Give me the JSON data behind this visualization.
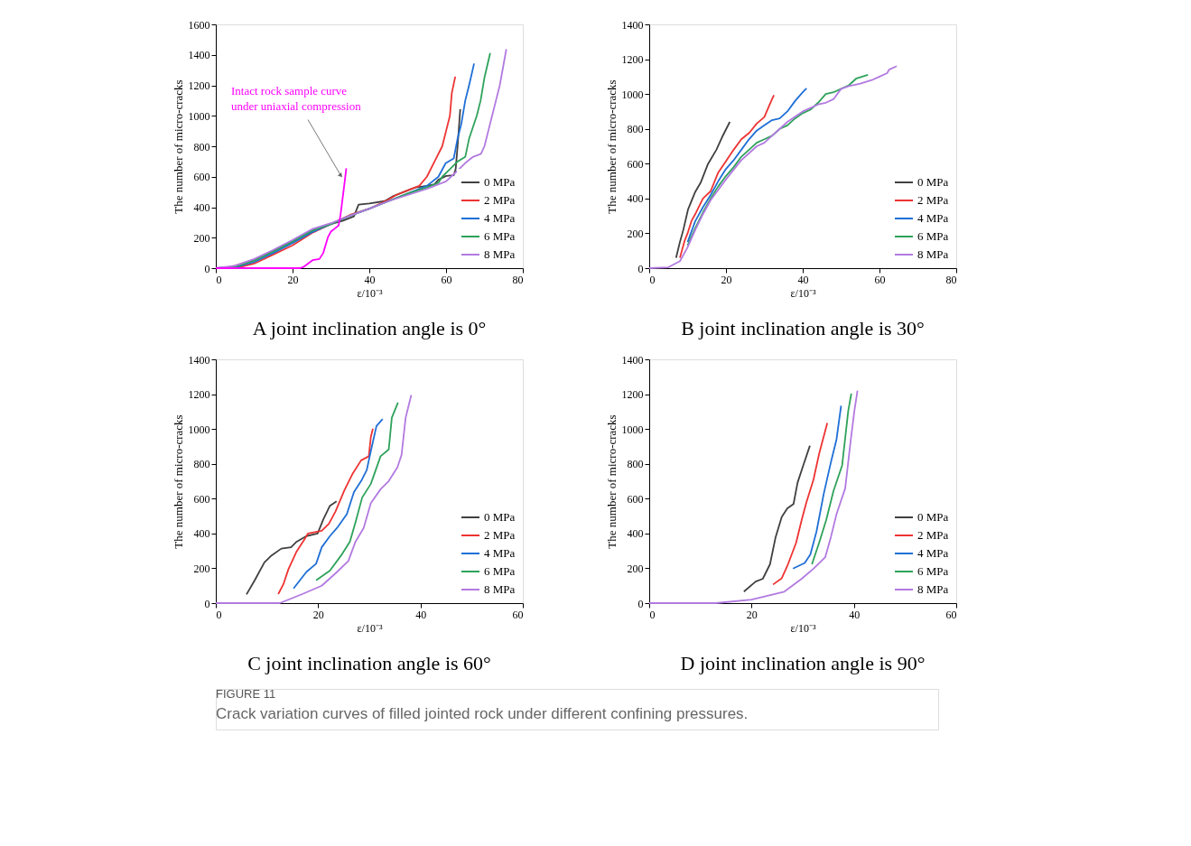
{
  "chart_data": [
    {
      "type": "line",
      "title": "A   joint inclination angle is 0°",
      "xlabel": "ε/10⁻³",
      "ylabel": "The number of micro-cracks",
      "xlim": [
        0,
        80
      ],
      "xticks": [
        0,
        20,
        40,
        60,
        80
      ],
      "ylim": [
        0,
        1600
      ],
      "yticks": [
        0,
        200,
        400,
        600,
        800,
        1000,
        1200,
        1400,
        1600
      ],
      "legend": "bottom right",
      "annotations": [
        "Intact rock sample curve under uniaxial compression"
      ],
      "series": [
        {
          "name": "0 MPa",
          "color": "#404040",
          "x": [
            0,
            2,
            5,
            10,
            15,
            20,
            25,
            30,
            33,
            36,
            37.2,
            40,
            44,
            46,
            50,
            52,
            55,
            57,
            58,
            60,
            62,
            62.5,
            63,
            63.7
          ],
          "values": [
            0,
            0,
            15,
            55,
            115,
            175,
            245,
            290,
            310,
            340,
            417,
            425,
            440,
            470,
            510,
            530,
            540,
            550,
            580,
            605,
            610,
            650,
            800,
            1044
          ]
        },
        {
          "name": "2 MPa",
          "color": "#ee3333",
          "x": [
            0,
            5,
            10,
            15,
            20,
            25,
            30,
            35,
            40,
            45,
            47,
            50,
            53,
            55,
            57,
            59,
            60,
            61,
            61.5,
            62.4
          ],
          "values": [
            0,
            0,
            30,
            90,
            150,
            230,
            290,
            350,
            390,
            450,
            480,
            510,
            540,
            600,
            700,
            800,
            900,
            1000,
            1150,
            1257
          ]
        },
        {
          "name": "4 MPa",
          "color": "#1f6fd6",
          "x": [
            0,
            5,
            10,
            15,
            20,
            25,
            30,
            35,
            40,
            45,
            50,
            55,
            58,
            59.9,
            62,
            63,
            64,
            65,
            66,
            67.3
          ],
          "values": [
            0,
            5,
            40,
            100,
            165,
            235,
            290,
            345,
            390,
            440,
            490,
            540,
            600,
            689,
            720,
            850,
            950,
            1100,
            1200,
            1343
          ]
        },
        {
          "name": "6 MPa",
          "color": "#2ea25a",
          "x": [
            0,
            5,
            10,
            15,
            20,
            25,
            30,
            35,
            40,
            45,
            50,
            55,
            58,
            59,
            61,
            63,
            65,
            66,
            68,
            69,
            70,
            71.5
          ],
          "values": [
            0,
            10,
            50,
            110,
            175,
            245,
            290,
            345,
            390,
            440,
            490,
            530,
            560,
            600,
            650,
            700,
            730,
            850,
            1000,
            1100,
            1250,
            1412
          ]
        },
        {
          "name": "8 MPa",
          "color": "#b27ae0",
          "x": [
            0,
            5,
            10,
            15,
            20,
            25,
            30,
            35,
            40,
            45,
            50,
            55,
            60,
            63,
            65,
            67,
            69.1,
            70,
            71,
            72,
            73,
            74,
            75.7
          ],
          "values": [
            0,
            15,
            60,
            120,
            185,
            255,
            295,
            345,
            390,
            440,
            480,
            520,
            570,
            640,
            690,
            730,
            750,
            800,
            900,
            1000,
            1100,
            1200,
            1437
          ]
        },
        {
          "color": "#ff00ff",
          "x": [
            0,
            22,
            23,
            25.2,
            27,
            28,
            29.2,
            30,
            31,
            32,
            32.5,
            33,
            33.5,
            34
          ],
          "values": [
            0,
            0,
            10,
            52,
            60,
            100,
            202,
            240,
            260,
            280,
            350,
            450,
            550,
            655
          ]
        }
      ]
    },
    {
      "type": "line",
      "title": "B   joint inclination angle is 30°",
      "xlabel": "ε/10⁻³",
      "ylabel": "The number of micro-cracks",
      "xlim": [
        0,
        80
      ],
      "xticks": [
        0,
        20,
        40,
        60,
        80
      ],
      "ylim": [
        0,
        1400
      ],
      "yticks": [
        0,
        200,
        400,
        600,
        800,
        1000,
        1200,
        1400
      ],
      "legend": "bottom right",
      "series": [
        {
          "name": "0 MPa",
          "color": "#404040",
          "x": [
            7,
            8,
            8.9,
            10.1,
            11.9,
            13.4,
            15.3,
            17.5,
            19,
            21
          ],
          "values": [
            60,
            150,
            221,
            336,
            434,
            491,
            598,
            680,
            753,
            840
          ]
        },
        {
          "name": "2 MPa",
          "color": "#ee3333",
          "x": [
            8,
            9.2,
            10,
            11,
            12.2,
            14,
            16,
            18,
            20,
            22,
            24,
            26.1,
            28,
            30,
            31,
            32,
            32.5
          ],
          "values": [
            60,
            156,
            200,
            270,
            319,
            400,
            442,
            550,
            614,
            680,
            740,
            778,
            830,
            868,
            920,
            970,
            994
          ]
        },
        {
          "name": "4 MPa",
          "color": "#1f6fd6",
          "x": [
            10,
            12,
            14,
            16,
            18,
            20,
            22,
            24,
            26,
            28,
            30,
            32,
            34,
            36,
            38,
            40,
            41
          ],
          "values": [
            150,
            270,
            350,
            420,
            500,
            570,
            620,
            680,
            740,
            790,
            820,
            850,
            860,
            900,
            960,
            1010,
            1032
          ]
        },
        {
          "name": "6 MPa",
          "color": "#2ea25a",
          "x": [
            10,
            12,
            14,
            16,
            18,
            20,
            22,
            24,
            26,
            28,
            30,
            32,
            34,
            36,
            38,
            40,
            42,
            44,
            46,
            48,
            50,
            52,
            54,
            57
          ],
          "values": [
            130,
            230,
            320,
            400,
            470,
            530,
            580,
            640,
            680,
            720,
            740,
            760,
            800,
            820,
            860,
            890,
            910,
            950,
            1000,
            1010,
            1030,
            1050,
            1090,
            1110
          ]
        },
        {
          "name": "8 MPa",
          "color": "#b27ae0",
          "x": [
            0,
            5,
            8,
            10,
            12,
            14,
            16,
            18,
            20,
            24,
            26,
            28,
            30,
            32,
            34,
            36,
            38,
            40,
            42,
            44,
            46,
            48,
            50,
            52,
            55,
            58,
            60,
            62,
            62.5,
            64.5
          ],
          "values": [
            0,
            5,
            40,
            120,
            220,
            310,
            390,
            450,
            510,
            620,
            660,
            700,
            720,
            760,
            800,
            840,
            870,
            900,
            920,
            940,
            950,
            970,
            1030,
            1045,
            1060,
            1080,
            1100,
            1120,
            1140,
            1160
          ]
        }
      ]
    },
    {
      "type": "line",
      "title": "C   joint inclination angle is 60°",
      "xlabel": "ε/10⁻³",
      "ylabel": "The number of micro-cracks",
      "xlim": [
        0,
        60
      ],
      "xticks": [
        0,
        20,
        40,
        60
      ],
      "ylim": [
        0,
        1400
      ],
      "yticks": [
        0,
        200,
        400,
        600,
        800,
        1000,
        1200,
        1400
      ],
      "legend": "bottom right",
      "series": [
        {
          "name": "0 MPa",
          "color": "#404040",
          "x": [
            6,
            7.6,
            9.5,
            10.9,
            12.8,
            14.7,
            15.8,
            17.7,
            19.9,
            21,
            22.3,
            23.6
          ],
          "values": [
            50,
            131,
            234,
            274,
            313,
            321,
            353,
            385,
            400,
            480,
            559,
            585
          ]
        },
        {
          "name": "2 MPa",
          "color": "#ee3333",
          "x": [
            12.2,
            13.2,
            14.2,
            15.8,
            17.4,
            18,
            20.7,
            22.1,
            23.4,
            25.1,
            26.7,
            28.4,
            29.9,
            30.3,
            30.7
          ],
          "values": [
            52,
            108,
            195,
            297,
            369,
            400,
            416,
            456,
            527,
            646,
            741,
            820,
            843,
            954,
            1002
          ]
        },
        {
          "name": "4 MPa",
          "color": "#1f6fd6",
          "x": [
            15.2,
            17.7,
            19.6,
            20.7,
            22.3,
            23.7,
            25.6,
            27,
            28.4,
            29.5,
            30.3,
            31.4,
            32.6
          ],
          "values": [
            84,
            179,
            226,
            321,
            385,
            432,
            511,
            638,
            701,
            764,
            874,
            1017,
            1057
          ]
        },
        {
          "name": "6 MPa",
          "color": "#2ea25a",
          "x": [
            19.6,
            22.3,
            24.5,
            26.2,
            27.3,
            28.6,
            30.3,
            32.2,
            33.8,
            34.4,
            35.6
          ],
          "values": [
            131,
            187,
            274,
            353,
            464,
            606,
            685,
            843,
            883,
            1065,
            1152
          ]
        },
        {
          "name": "8 MPa",
          "color": "#b27ae0",
          "x": [
            0,
            12.5,
            16.9,
            20.7,
            23.4,
            25.9,
            27.3,
            28.9,
            30.3,
            32.2,
            33.8,
            35.5,
            36.3,
            37.1,
            38.2
          ],
          "values": [
            0,
            0,
            52,
            100,
            171,
            242,
            353,
            432,
            574,
            654,
            701,
            780,
            851,
            1065,
            1195
          ]
        }
      ]
    },
    {
      "type": "line",
      "title": "D   joint inclination angle is 90°",
      "xlabel": "ε/10⁻³",
      "ylabel": "The number of micro-cracks",
      "xlim": [
        0,
        60
      ],
      "xticks": [
        0,
        20,
        40,
        60
      ],
      "ylim": [
        0,
        1400
      ],
      "yticks": [
        0,
        200,
        400,
        600,
        800,
        1000,
        1200,
        1400
      ],
      "legend": "bottom right",
      "series": [
        {
          "name": "0 MPa",
          "color": "#404040",
          "x": [
            18.5,
            20.8,
            22.2,
            23.6,
            24.7,
            25.9,
            27,
            28.2,
            29,
            30.1,
            31.4
          ],
          "values": [
            66,
            124,
            140,
            223,
            379,
            495,
            544,
            569,
            693,
            791,
            904
          ]
        },
        {
          "name": "2 MPa",
          "color": "#ee3333",
          "x": [
            24.2,
            25.9,
            27,
            28.7,
            29.8,
            30.7,
            32.1,
            33.2,
            34.8
          ],
          "values": [
            107,
            143,
            214,
            346,
            478,
            577,
            709,
            857,
            1034
          ]
        },
        {
          "name": "4 MPa",
          "color": "#1f6fd6",
          "x": [
            28.1,
            30.4,
            31.5,
            32.7,
            34.1,
            35.5,
            36.6,
            37.5
          ],
          "values": [
            198,
            231,
            280,
            412,
            627,
            808,
            940,
            1133
          ]
        },
        {
          "name": "6 MPa",
          "color": "#2ea25a",
          "x": [
            31.8,
            33.2,
            34.6,
            36,
            37.7,
            38.9,
            39.5
          ],
          "values": [
            223,
            346,
            478,
            643,
            791,
            1105,
            1204
          ]
        },
        {
          "name": "8 MPa",
          "color": "#b27ae0",
          "x": [
            0,
            13,
            20,
            26.4,
            29.8,
            32.1,
            34.4,
            35.5,
            36.6,
            38.3,
            39.4,
            40.1,
            40.7
          ],
          "values": [
            0,
            0,
            20,
            66,
            140,
            198,
            264,
            379,
            511,
            659,
            940,
            1105,
            1220
          ]
        }
      ]
    },
    {
      "type": "other",
      "annotations": [
        "FIGURE 11",
        "Crack variation curves of filled jointed rock under different confining pressures."
      ]
    }
  ]
}
